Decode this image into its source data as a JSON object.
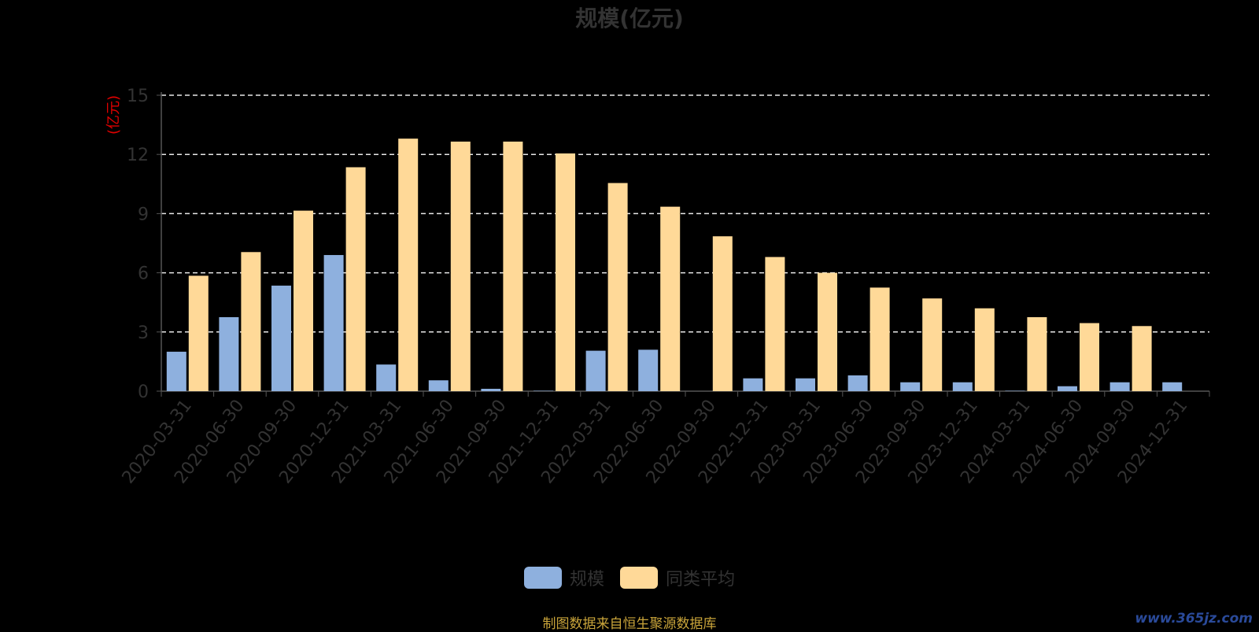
{
  "chart_data": {
    "type": "bar",
    "title": "规模(亿元)",
    "ylabel": "(亿元)",
    "xlabel": "",
    "ylim": [
      0,
      15
    ],
    "yticks": [
      0,
      3,
      6,
      9,
      12,
      15
    ],
    "grid": true,
    "legend_position": "bottom-center",
    "categories": [
      "2020-03-31",
      "2020-06-30",
      "2020-09-30",
      "2020-12-31",
      "2021-03-31",
      "2021-06-30",
      "2021-09-30",
      "2021-12-31",
      "2022-03-31",
      "2022-06-30",
      "2022-09-30",
      "2022-12-31",
      "2023-03-31",
      "2023-06-30",
      "2023-09-30",
      "2023-12-31",
      "2024-03-31",
      "2024-06-30",
      "2024-09-30",
      "2024-12-31"
    ],
    "series": [
      {
        "name": "规模",
        "color": "#8eb0de",
        "values": [
          2.0,
          3.75,
          5.35,
          6.9,
          1.35,
          0.55,
          0.12,
          0.02,
          2.05,
          2.1,
          0.0,
          0.65,
          0.65,
          0.8,
          0.45,
          0.45,
          0.02,
          0.25,
          0.45,
          0.45
        ]
      },
      {
        "name": "同类平均",
        "color": "#ffd998",
        "values": [
          5.85,
          7.05,
          9.15,
          11.35,
          12.8,
          12.65,
          12.65,
          12.05,
          10.55,
          9.35,
          7.85,
          6.8,
          6.0,
          5.25,
          4.7,
          4.2,
          3.75,
          3.45,
          3.3,
          null
        ]
      }
    ]
  },
  "footer": {
    "source": "制图数据来自恒生聚源数据库",
    "watermark": "www.365jz.com"
  }
}
